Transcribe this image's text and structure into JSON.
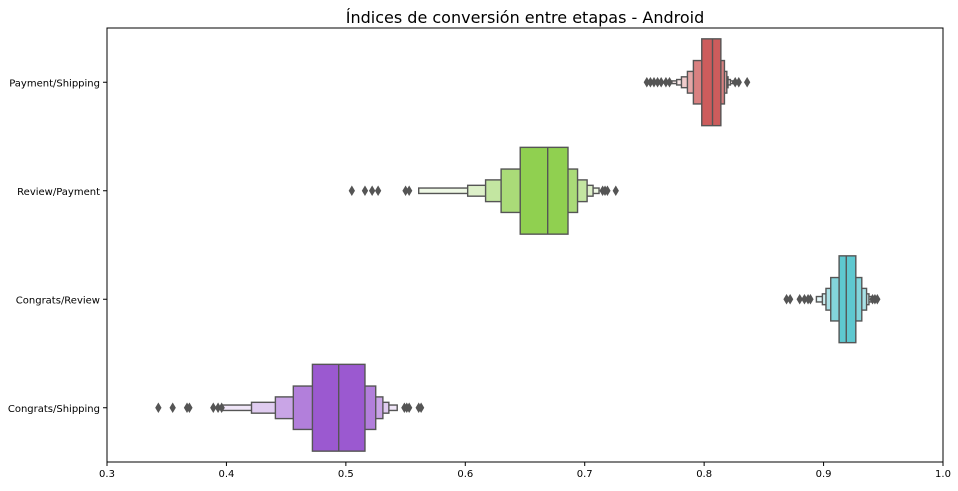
{
  "chart_data": {
    "type": "boxen",
    "orientation": "horizontal",
    "title": "Índices de conversión entre etapas - Android",
    "xlabel": "",
    "ylabel": "",
    "xlim": [
      0.3,
      1.0
    ],
    "xticks": [
      0.3,
      0.4,
      0.5,
      0.6,
      0.7,
      0.8,
      0.9,
      1.0
    ],
    "xtick_labels": [
      "0.3",
      "0.4",
      "0.5",
      "0.6",
      "0.7",
      "0.8",
      "0.9",
      "1.0"
    ],
    "grid": false,
    "categories": [
      "Payment/Shipping",
      "Review/Payment",
      "Congrats/Review",
      "Congrats/Shipping"
    ],
    "series": [
      {
        "name": "Payment/Shipping",
        "color": "#cd5c5c",
        "median": 0.807,
        "boxes": [
          [
            0.798,
            0.814
          ],
          [
            0.791,
            0.817
          ],
          [
            0.786,
            0.819
          ],
          [
            0.781,
            0.82
          ],
          [
            0.777,
            0.822
          ],
          [
            0.773,
            0.824
          ]
        ],
        "outliers": [
          0.752,
          0.755,
          0.758,
          0.761,
          0.764,
          0.768,
          0.771,
          0.826,
          0.829,
          0.836
        ]
      },
      {
        "name": "Review/Payment",
        "color": "#90d050",
        "median": 0.669,
        "boxes": [
          [
            0.646,
            0.686
          ],
          [
            0.63,
            0.694
          ],
          [
            0.617,
            0.702
          ],
          [
            0.602,
            0.707
          ],
          [
            0.561,
            0.712
          ]
        ],
        "outliers": [
          0.505,
          0.516,
          0.522,
          0.527,
          0.55,
          0.553,
          0.715,
          0.717,
          0.719,
          0.726
        ]
      },
      {
        "name": "Congrats/Review",
        "color": "#5ec8d0",
        "median": 0.919,
        "boxes": [
          [
            0.913,
            0.927
          ],
          [
            0.906,
            0.932
          ],
          [
            0.902,
            0.936
          ],
          [
            0.899,
            0.938
          ],
          [
            0.894,
            0.94
          ]
        ],
        "outliers": [
          0.869,
          0.872,
          0.88,
          0.884,
          0.887,
          0.889,
          0.941,
          0.943,
          0.945
        ]
      },
      {
        "name": "Congrats/Shipping",
        "color": "#9b59d0",
        "median": 0.494,
        "boxes": [
          [
            0.472,
            0.516
          ],
          [
            0.456,
            0.525
          ],
          [
            0.441,
            0.531
          ],
          [
            0.421,
            0.536
          ],
          [
            0.396,
            0.543
          ]
        ],
        "outliers": [
          0.343,
          0.355,
          0.367,
          0.369,
          0.389,
          0.393,
          0.396,
          0.549,
          0.551,
          0.553,
          0.561,
          0.563
        ]
      }
    ]
  }
}
